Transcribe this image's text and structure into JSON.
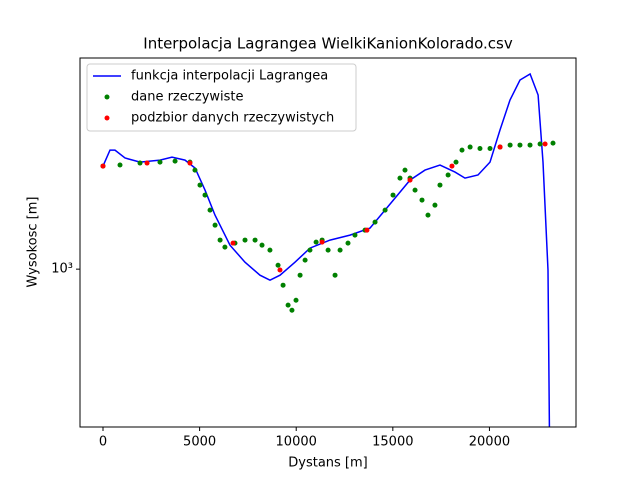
{
  "chart_data": {
    "type": "line",
    "title": "Interpolacja Lagrangea WielkiKanionKolorado.csv",
    "xlabel": "Dystans [m]",
    "ylabel": "Wysokosc [m]",
    "xlim": [
      -1190,
      24480
    ],
    "xticks": [
      0,
      5000,
      10000,
      15000,
      20000
    ],
    "ylim": [
      318,
      4630
    ],
    "yticks": [
      {
        "value": 1000,
        "label": "10³"
      }
    ],
    "yscale": "log",
    "grid": false,
    "legend": "upper left",
    "series": [
      {
        "name": "funkcja interpolacji Lagrangea",
        "color": "#0000ff",
        "type": "line",
        "x": [
          0,
          362,
          621,
          1139,
          1915,
          2950,
          3571,
          4244,
          4762,
          5280,
          5797,
          6574,
          7350,
          8126,
          8644,
          9161,
          9937,
          10714,
          11749,
          12785,
          13820,
          14596,
          15114,
          15890,
          16667,
          17443,
          18220,
          18737,
          19410,
          20031,
          20549,
          21066,
          21584,
          22102,
          22516,
          22774,
          23031,
          23120
        ],
        "values": [
          2113,
          2373,
          2373,
          2240,
          2175,
          2207,
          2256,
          2207,
          2083,
          1775,
          1480,
          1190,
          1052,
          957,
          923,
          957,
          1052,
          1165,
          1235,
          1280,
          1347,
          1535,
          1675,
          1909,
          2052,
          2128,
          2023,
          1936,
          1980,
          2175,
          2745,
          3413,
          3948,
          4121,
          3539,
          2175,
          993,
          250
        ]
      },
      {
        "name": "dane rzeczywiste",
        "color": "#008000",
        "type": "scatter",
        "x": [
          0,
          880,
          1915,
          2950,
          3730,
          4500,
          4760,
          5020,
          5280,
          5540,
          5800,
          6060,
          6310,
          6830,
          7350,
          7870,
          8230,
          8640,
          9060,
          9320,
          9580,
          9780,
          9990,
          10200,
          10460,
          10710,
          11030,
          11340,
          11650,
          12010,
          12270,
          12680,
          13040,
          13560,
          14080,
          14600,
          15010,
          15370,
          15630,
          15890,
          16150,
          16510,
          16820,
          17180,
          17440,
          17860,
          18270,
          18580,
          19000,
          19510,
          20030,
          20550,
          21070,
          21580,
          22100,
          22620,
          23290
        ],
        "values": [
          2113,
          2130,
          2160,
          2175,
          2190,
          2175,
          2052,
          1841,
          1712,
          1535,
          1376,
          1235,
          1173,
          1208,
          1235,
          1235,
          1190,
          1148,
          1029,
          890,
          770,
          742,
          798,
          957,
          1068,
          1148,
          1217,
          1235,
          1148,
          957,
          1148,
          1208,
          1280,
          1327,
          1407,
          1535,
          1712,
          1936,
          2052,
          1936,
          1775,
          1651,
          1480,
          1591,
          1841,
          1980,
          2175,
          2373,
          2426,
          2400,
          2400,
          2426,
          2461,
          2461,
          2461,
          2480,
          2496
        ]
      },
      {
        "name": "podzbior danych rzeczywistych",
        "color": "#ff0000",
        "type": "scatter",
        "x": [
          0,
          2280,
          4500,
          6730,
          9160,
          11340,
          13660,
          15890,
          18060,
          20550,
          22880
        ],
        "values": [
          2113,
          2160,
          2160,
          1208,
          994,
          1217,
          1327,
          1909,
          2113,
          2426,
          2480
        ]
      }
    ]
  }
}
